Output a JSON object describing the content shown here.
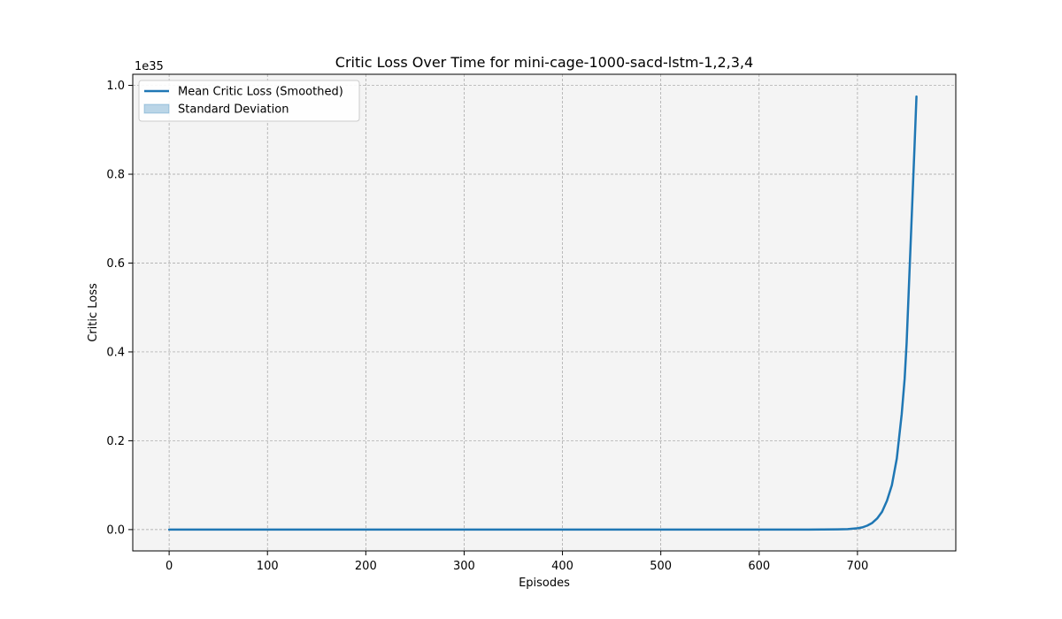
{
  "chart_data": {
    "type": "line",
    "title": "Critic Loss Over Time for mini-cage-1000-sacd-lstm-1,2,3,4",
    "xlabel": "Episodes",
    "ylabel": "Critic Loss",
    "y_offset_label": "1e35",
    "xlim": [
      -37,
      800
    ],
    "ylim": [
      -0.048,
      1.025
    ],
    "x_ticks": [
      0,
      100,
      200,
      300,
      400,
      500,
      600,
      700
    ],
    "y_ticks": [
      0.0,
      0.2,
      0.4,
      0.6,
      0.8,
      1.0
    ],
    "x_tick_labels": [
      "0",
      "100",
      "200",
      "300",
      "400",
      "500",
      "600",
      "700"
    ],
    "y_tick_labels": [
      "0.0",
      "0.2",
      "0.4",
      "0.6",
      "0.8",
      "1.0"
    ],
    "grid": true,
    "legend_position": "top-left",
    "series": [
      {
        "name": "Mean Critic Loss (Smoothed)",
        "color": "#1f77b4",
        "x": [
          0,
          100,
          200,
          300,
          400,
          500,
          600,
          650,
          680,
          690,
          700,
          705,
          710,
          715,
          720,
          725,
          730,
          735,
          740,
          745,
          748,
          750,
          752,
          754,
          756,
          758,
          760
        ],
        "y": [
          0,
          0,
          0,
          0,
          0,
          0,
          0,
          0,
          0.0005,
          0.001,
          0.003,
          0.005,
          0.009,
          0.015,
          0.025,
          0.04,
          0.065,
          0.1,
          0.16,
          0.26,
          0.34,
          0.42,
          0.53,
          0.64,
          0.75,
          0.86,
          0.975
        ]
      }
    ],
    "legend": [
      {
        "label": "Mean Critic Loss (Smoothed)",
        "kind": "line",
        "color": "#1f77b4"
      },
      {
        "label": "Standard Deviation",
        "kind": "patch",
        "color": "#1f77b4"
      }
    ]
  }
}
